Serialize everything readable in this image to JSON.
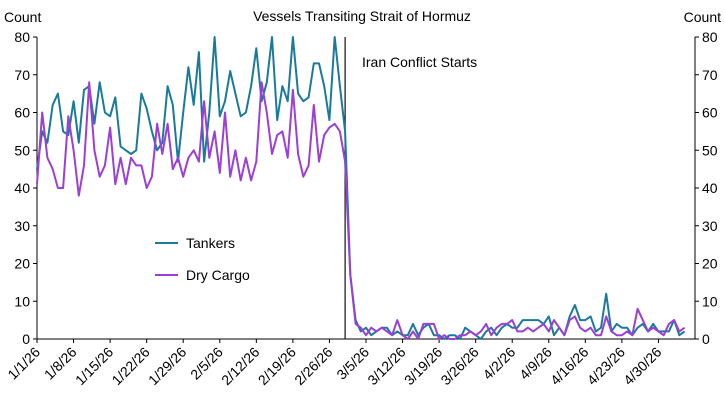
{
  "chart_data": {
    "type": "line",
    "title": "Vessels Transiting Strait of Hormuz",
    "ylabel_left": "Count",
    "ylabel_right": "Count",
    "ylim": [
      0,
      80
    ],
    "yticks": [
      "0",
      "10",
      "20",
      "30",
      "40",
      "50",
      "60",
      "70",
      "80"
    ],
    "xlim": [
      "2026-01-01",
      "2026-05-07"
    ],
    "xticks": [
      "1/1/26",
      "1/8/26",
      "1/15/26",
      "1/22/26",
      "1/29/26",
      "2/5/26",
      "2/12/26",
      "2/19/26",
      "2/26/26",
      "3/5/26",
      "3/12/26",
      "3/19/26",
      "3/26/26",
      "4/2/26",
      "4/9/26",
      "4/16/26",
      "4/23/26",
      "4/30/26"
    ],
    "grid": false,
    "legend_position": "middle-left",
    "annotation": {
      "text": "Iran Conflict Starts",
      "date": "2026-03-01"
    },
    "series": [
      {
        "name": "Tankers",
        "color": "#1a7a9c",
        "points": [
          [
            "2026-01-01",
            45
          ],
          [
            "2026-01-02",
            55
          ],
          [
            "2026-01-03",
            52
          ],
          [
            "2026-01-04",
            62
          ],
          [
            "2026-01-05",
            65
          ],
          [
            "2026-01-06",
            55
          ],
          [
            "2026-01-07",
            54
          ],
          [
            "2026-01-08",
            63
          ],
          [
            "2026-01-09",
            52
          ],
          [
            "2026-01-10",
            66
          ],
          [
            "2026-01-11",
            67
          ],
          [
            "2026-01-12",
            57
          ],
          [
            "2026-01-13",
            68
          ],
          [
            "2026-01-14",
            60
          ],
          [
            "2026-01-15",
            59
          ],
          [
            "2026-01-16",
            64
          ],
          [
            "2026-01-17",
            51
          ],
          [
            "2026-01-18",
            50
          ],
          [
            "2026-01-19",
            49
          ],
          [
            "2026-01-20",
            50
          ],
          [
            "2026-01-21",
            65
          ],
          [
            "2026-01-22",
            61
          ],
          [
            "2026-01-23",
            55
          ],
          [
            "2026-01-24",
            50
          ],
          [
            "2026-01-25",
            52
          ],
          [
            "2026-01-26",
            67
          ],
          [
            "2026-01-27",
            62
          ],
          [
            "2026-01-28",
            47
          ],
          [
            "2026-01-29",
            60
          ],
          [
            "2026-01-30",
            72
          ],
          [
            "2026-01-31",
            62
          ],
          [
            "2026-02-01",
            76
          ],
          [
            "2026-02-02",
            47
          ],
          [
            "2026-02-03",
            60
          ],
          [
            "2026-02-04",
            80
          ],
          [
            "2026-02-05",
            59
          ],
          [
            "2026-02-06",
            63
          ],
          [
            "2026-02-07",
            71
          ],
          [
            "2026-02-08",
            65
          ],
          [
            "2026-02-09",
            59
          ],
          [
            "2026-02-10",
            60
          ],
          [
            "2026-02-11",
            67
          ],
          [
            "2026-02-12",
            77
          ],
          [
            "2026-02-13",
            63
          ],
          [
            "2026-02-14",
            68
          ],
          [
            "2026-02-15",
            80
          ],
          [
            "2026-02-16",
            58
          ],
          [
            "2026-02-17",
            67
          ],
          [
            "2026-02-18",
            63
          ],
          [
            "2026-02-19",
            80
          ],
          [
            "2026-02-20",
            65
          ],
          [
            "2026-02-21",
            63
          ],
          [
            "2026-02-22",
            64
          ],
          [
            "2026-02-23",
            73
          ],
          [
            "2026-02-24",
            73
          ],
          [
            "2026-02-25",
            67
          ],
          [
            "2026-02-26",
            58
          ],
          [
            "2026-02-27",
            80
          ],
          [
            "2026-02-28",
            67
          ],
          [
            "2026-03-01",
            55
          ],
          [
            "2026-03-02",
            17
          ],
          [
            "2026-03-03",
            5
          ],
          [
            "2026-03-04",
            2
          ],
          [
            "2026-03-05",
            3
          ],
          [
            "2026-03-06",
            1
          ],
          [
            "2026-03-07",
            2
          ],
          [
            "2026-03-08",
            3
          ],
          [
            "2026-03-09",
            3
          ],
          [
            "2026-03-10",
            1
          ],
          [
            "2026-03-11",
            2
          ],
          [
            "2026-03-12",
            1
          ],
          [
            "2026-03-13",
            1
          ],
          [
            "2026-03-14",
            4
          ],
          [
            "2026-03-15",
            1
          ],
          [
            "2026-03-16",
            3
          ],
          [
            "2026-03-17",
            4
          ],
          [
            "2026-03-18",
            1
          ],
          [
            "2026-03-19",
            1
          ],
          [
            "2026-03-20",
            0
          ],
          [
            "2026-03-21",
            1
          ],
          [
            "2026-03-22",
            1
          ],
          [
            "2026-03-23",
            0
          ],
          [
            "2026-03-24",
            3
          ],
          [
            "2026-03-25",
            2
          ],
          [
            "2026-03-26",
            1
          ],
          [
            "2026-03-27",
            0
          ],
          [
            "2026-03-28",
            2
          ],
          [
            "2026-03-29",
            3
          ],
          [
            "2026-03-30",
            1
          ],
          [
            "2026-03-31",
            3
          ],
          [
            "2026-04-01",
            4
          ],
          [
            "2026-04-02",
            3
          ],
          [
            "2026-04-03",
            3
          ],
          [
            "2026-04-04",
            5
          ],
          [
            "2026-04-05",
            5
          ],
          [
            "2026-04-06",
            5
          ],
          [
            "2026-04-07",
            5
          ],
          [
            "2026-04-08",
            4
          ],
          [
            "2026-04-09",
            6
          ],
          [
            "2026-04-10",
            1
          ],
          [
            "2026-04-11",
            3
          ],
          [
            "2026-04-12",
            1
          ],
          [
            "2026-04-13",
            6
          ],
          [
            "2026-04-14",
            9
          ],
          [
            "2026-04-15",
            5
          ],
          [
            "2026-04-16",
            5
          ],
          [
            "2026-04-17",
            6
          ],
          [
            "2026-04-18",
            2
          ],
          [
            "2026-04-19",
            3
          ],
          [
            "2026-04-20",
            12
          ],
          [
            "2026-04-21",
            2
          ],
          [
            "2026-04-22",
            4
          ],
          [
            "2026-04-23",
            3
          ],
          [
            "2026-04-24",
            3
          ],
          [
            "2026-04-25",
            1
          ],
          [
            "2026-04-26",
            3
          ],
          [
            "2026-04-27",
            4
          ],
          [
            "2026-04-28",
            2
          ],
          [
            "2026-04-29",
            4
          ],
          [
            "2026-04-30",
            2
          ],
          [
            "2026-05-01",
            2
          ],
          [
            "2026-05-02",
            2
          ],
          [
            "2026-05-03",
            5
          ],
          [
            "2026-05-04",
            1
          ],
          [
            "2026-05-05",
            2
          ]
        ]
      },
      {
        "name": "Dry Cargo",
        "color": "#9b3fd6",
        "points": [
          [
            "2026-01-01",
            41
          ],
          [
            "2026-01-02",
            60
          ],
          [
            "2026-01-03",
            48
          ],
          [
            "2026-01-04",
            45
          ],
          [
            "2026-01-05",
            40
          ],
          [
            "2026-01-06",
            40
          ],
          [
            "2026-01-07",
            59
          ],
          [
            "2026-01-08",
            50
          ],
          [
            "2026-01-09",
            38
          ],
          [
            "2026-01-10",
            46
          ],
          [
            "2026-01-11",
            68
          ],
          [
            "2026-01-12",
            50
          ],
          [
            "2026-01-13",
            43
          ],
          [
            "2026-01-14",
            46
          ],
          [
            "2026-01-15",
            56
          ],
          [
            "2026-01-16",
            41
          ],
          [
            "2026-01-17",
            48
          ],
          [
            "2026-01-18",
            41
          ],
          [
            "2026-01-19",
            48
          ],
          [
            "2026-01-20",
            46
          ],
          [
            "2026-01-21",
            46
          ],
          [
            "2026-01-22",
            40
          ],
          [
            "2026-01-23",
            43
          ],
          [
            "2026-01-24",
            57
          ],
          [
            "2026-01-25",
            49
          ],
          [
            "2026-01-26",
            57
          ],
          [
            "2026-01-27",
            45
          ],
          [
            "2026-01-28",
            48
          ],
          [
            "2026-01-29",
            43
          ],
          [
            "2026-01-30",
            48
          ],
          [
            "2026-01-31",
            50
          ],
          [
            "2026-02-01",
            47
          ],
          [
            "2026-02-02",
            63
          ],
          [
            "2026-02-03",
            48
          ],
          [
            "2026-02-04",
            55
          ],
          [
            "2026-02-05",
            44
          ],
          [
            "2026-02-06",
            60
          ],
          [
            "2026-02-07",
            43
          ],
          [
            "2026-02-08",
            50
          ],
          [
            "2026-02-09",
            42
          ],
          [
            "2026-02-10",
            48
          ],
          [
            "2026-02-11",
            42
          ],
          [
            "2026-02-12",
            47
          ],
          [
            "2026-02-13",
            68
          ],
          [
            "2026-02-14",
            60
          ],
          [
            "2026-02-15",
            49
          ],
          [
            "2026-02-16",
            54
          ],
          [
            "2026-02-17",
            55
          ],
          [
            "2026-02-18",
            48
          ],
          [
            "2026-02-19",
            66
          ],
          [
            "2026-02-20",
            49
          ],
          [
            "2026-02-21",
            43
          ],
          [
            "2026-02-22",
            46
          ],
          [
            "2026-02-23",
            62
          ],
          [
            "2026-02-24",
            47
          ],
          [
            "2026-02-25",
            54
          ],
          [
            "2026-02-26",
            56
          ],
          [
            "2026-02-27",
            57
          ],
          [
            "2026-02-28",
            55
          ],
          [
            "2026-03-01",
            47
          ],
          [
            "2026-03-02",
            17
          ],
          [
            "2026-03-03",
            4
          ],
          [
            "2026-03-04",
            3
          ],
          [
            "2026-03-05",
            1
          ],
          [
            "2026-03-06",
            3
          ],
          [
            "2026-03-07",
            2
          ],
          [
            "2026-03-08",
            3
          ],
          [
            "2026-03-09",
            2
          ],
          [
            "2026-03-10",
            1
          ],
          [
            "2026-03-11",
            5
          ],
          [
            "2026-03-12",
            1
          ],
          [
            "2026-03-13",
            0
          ],
          [
            "2026-03-14",
            2
          ],
          [
            "2026-03-15",
            0
          ],
          [
            "2026-03-16",
            4
          ],
          [
            "2026-03-17",
            4
          ],
          [
            "2026-03-18",
            4
          ],
          [
            "2026-03-19",
            0
          ],
          [
            "2026-03-20",
            1
          ],
          [
            "2026-03-21",
            0
          ],
          [
            "2026-03-22",
            0
          ],
          [
            "2026-03-23",
            1
          ],
          [
            "2026-03-24",
            1
          ],
          [
            "2026-03-25",
            2
          ],
          [
            "2026-03-26",
            1
          ],
          [
            "2026-03-27",
            2
          ],
          [
            "2026-03-28",
            4
          ],
          [
            "2026-03-29",
            1
          ],
          [
            "2026-03-30",
            3
          ],
          [
            "2026-03-31",
            4
          ],
          [
            "2026-04-01",
            4
          ],
          [
            "2026-04-02",
            5
          ],
          [
            "2026-04-03",
            2
          ],
          [
            "2026-04-04",
            2
          ],
          [
            "2026-04-05",
            3
          ],
          [
            "2026-04-06",
            2
          ],
          [
            "2026-04-07",
            3
          ],
          [
            "2026-04-08",
            4
          ],
          [
            "2026-04-09",
            2
          ],
          [
            "2026-04-10",
            5
          ],
          [
            "2026-04-11",
            3
          ],
          [
            "2026-04-12",
            1
          ],
          [
            "2026-04-13",
            5
          ],
          [
            "2026-04-14",
            6
          ],
          [
            "2026-04-15",
            3
          ],
          [
            "2026-04-16",
            2
          ],
          [
            "2026-04-17",
            3
          ],
          [
            "2026-04-18",
            1
          ],
          [
            "2026-04-19",
            1
          ],
          [
            "2026-04-20",
            6
          ],
          [
            "2026-04-21",
            2
          ],
          [
            "2026-04-22",
            1
          ],
          [
            "2026-04-23",
            1
          ],
          [
            "2026-04-24",
            2
          ],
          [
            "2026-04-25",
            1
          ],
          [
            "2026-04-26",
            8
          ],
          [
            "2026-04-27",
            5
          ],
          [
            "2026-04-28",
            2
          ],
          [
            "2026-04-29",
            3
          ],
          [
            "2026-04-30",
            2
          ],
          [
            "2026-05-01",
            1
          ],
          [
            "2026-05-02",
            4
          ],
          [
            "2026-05-03",
            5
          ],
          [
            "2026-05-04",
            2
          ],
          [
            "2026-05-05",
            3
          ]
        ]
      }
    ]
  }
}
